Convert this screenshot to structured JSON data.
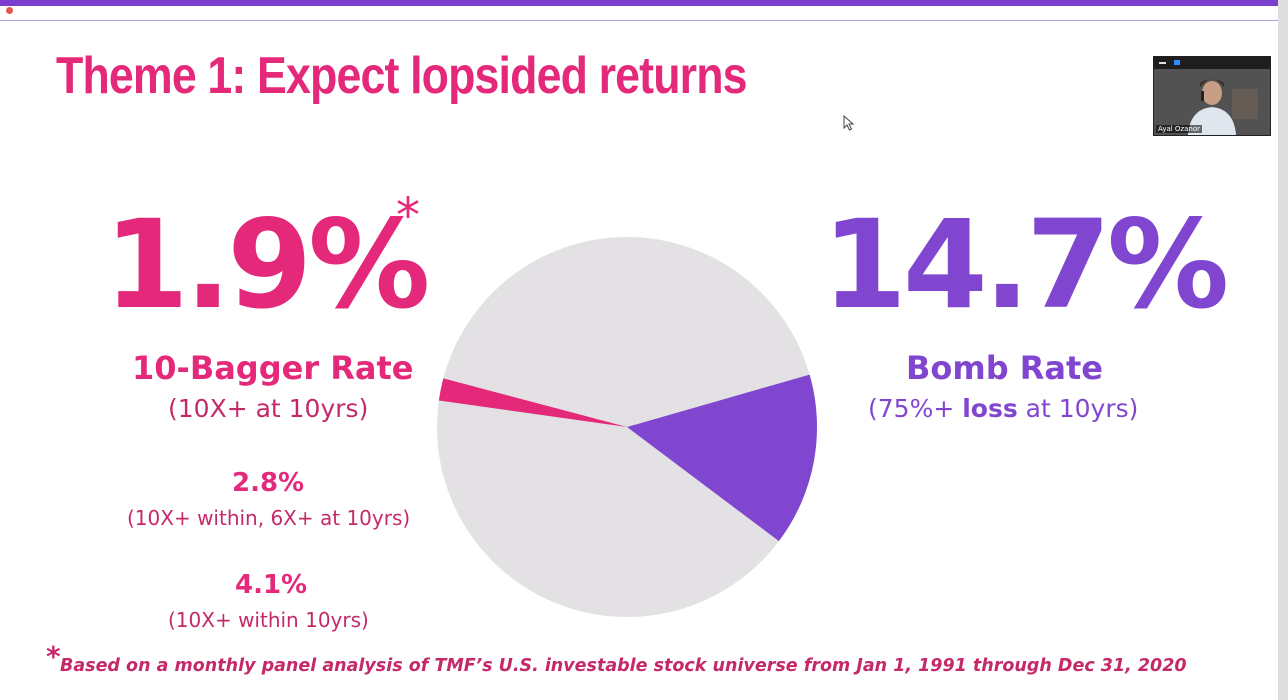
{
  "app": {
    "accent_color": "#7b3fcf",
    "recording_indicator": "record-dot-icon"
  },
  "slide": {
    "title": "Theme 1: Expect lopsided returns",
    "colors": {
      "pink": "#e5297a",
      "purple": "#8146d0",
      "gray": "#e3e1e4"
    },
    "left": {
      "stat": "1.9%",
      "asterisk": "*",
      "label": "10-Bagger Rate",
      "sublabel": "(10X+ at 10yrs)",
      "alt1_stat": "2.8%",
      "alt1_sub": "(10X+ within, 6X+ at 10yrs)",
      "alt2_stat": "4.1%",
      "alt2_sub": "(10X+ within 10yrs)"
    },
    "right": {
      "stat": "14.7%",
      "label": "Bomb Rate",
      "sub_prefix": "(75%+ ",
      "sub_bold": "loss",
      "sub_suffix": " at 10yrs)"
    },
    "footnote_star": "*",
    "footnote": "Based on a monthly panel analysis of TMF’s U.S. investable stock universe from Jan 1, 1991 through Dec 31, 2020"
  },
  "chart_data": {
    "type": "pie",
    "title": "",
    "slices": [
      {
        "label": "10-Bagger Rate",
        "value": 1.9,
        "color": "#e5297a"
      },
      {
        "label": "Bomb Rate",
        "value": 14.7,
        "color": "#8146d0"
      },
      {
        "label": "",
        "value": 83.4,
        "color": "#e3e1e4"
      }
    ]
  },
  "video_tile": {
    "participant_name": "Ayal Ozanor"
  }
}
